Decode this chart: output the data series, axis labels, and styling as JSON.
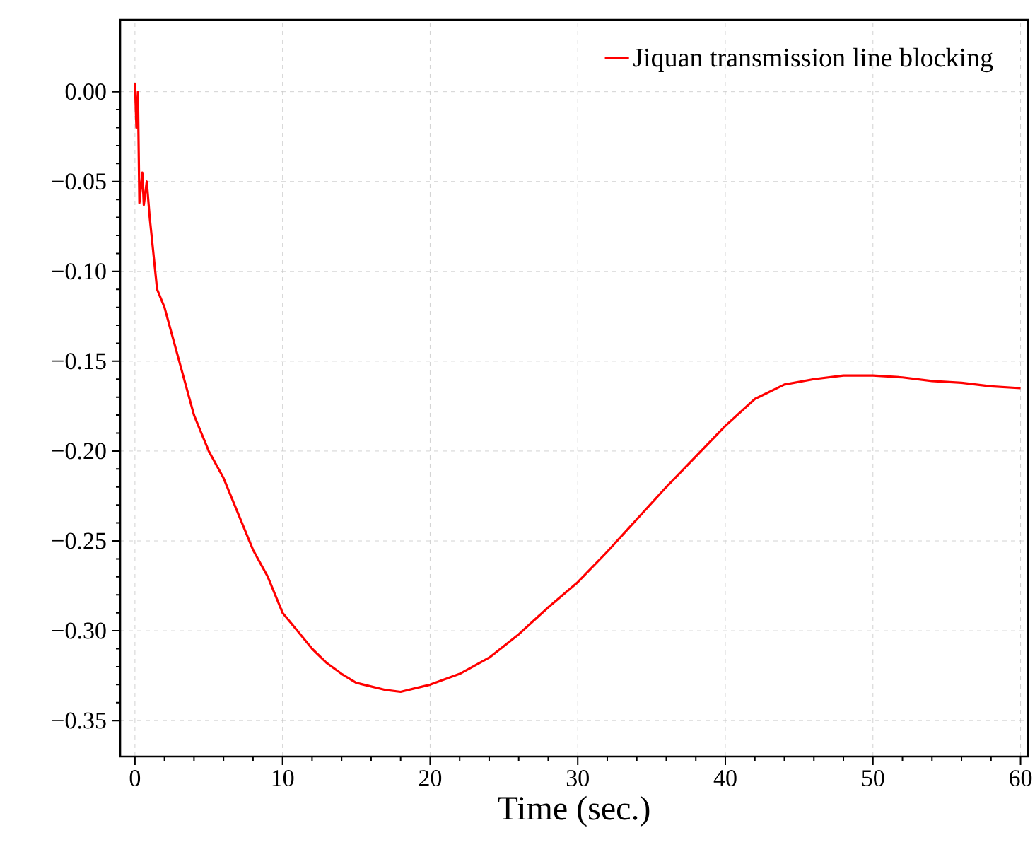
{
  "chart_data": {
    "type": "line",
    "xlabel": "Time (sec.)",
    "xlim": [
      -1,
      60.5
    ],
    "ylim": [
      -0.37,
      0.04
    ],
    "xticks": [
      0,
      10,
      20,
      30,
      40,
      50,
      60
    ],
    "yticks": [
      {
        "value": 0,
        "label": "0.00"
      },
      {
        "value": -0.05,
        "label": "−0.05"
      },
      {
        "value": -0.1,
        "label": "−0.10"
      },
      {
        "value": -0.15,
        "label": "−0.15"
      },
      {
        "value": -0.2,
        "label": "−0.20"
      },
      {
        "value": -0.25,
        "label": "−0.25"
      },
      {
        "value": -0.3,
        "label": "−0.30"
      },
      {
        "value": -0.35,
        "label": "−0.35"
      }
    ],
    "grid": true,
    "legend": "top right",
    "series": [
      {
        "name": "Jiquan transmission line blocking",
        "color": "#ff0000",
        "x": [
          0,
          0.1,
          0.2,
          0.3,
          0.5,
          0.6,
          0.8,
          1.0,
          1.5,
          2,
          2.5,
          3,
          3.5,
          4,
          4.5,
          5,
          6,
          7,
          8,
          9,
          10,
          11,
          12,
          13,
          14,
          15,
          16,
          17,
          18,
          19,
          20,
          22,
          24,
          26,
          28,
          30,
          32,
          34,
          36,
          38,
          40,
          42,
          44,
          46,
          48,
          50,
          52,
          54,
          56,
          58,
          60
        ],
        "values": [
          0.005,
          -0.02,
          0.0,
          -0.062,
          -0.045,
          -0.063,
          -0.05,
          -0.07,
          -0.11,
          -0.12,
          -0.135,
          -0.15,
          -0.165,
          -0.18,
          -0.19,
          -0.2,
          -0.215,
          -0.235,
          -0.255,
          -0.27,
          -0.29,
          -0.3,
          -0.31,
          -0.318,
          -0.324,
          -0.329,
          -0.331,
          -0.333,
          -0.334,
          -0.332,
          -0.33,
          -0.324,
          -0.315,
          -0.302,
          -0.287,
          -0.273,
          -0.256,
          -0.238,
          -0.22,
          -0.203,
          -0.186,
          -0.171,
          -0.163,
          -0.16,
          -0.158,
          -0.158,
          -0.159,
          -0.161,
          -0.162,
          -0.164,
          -0.165
        ]
      }
    ]
  }
}
